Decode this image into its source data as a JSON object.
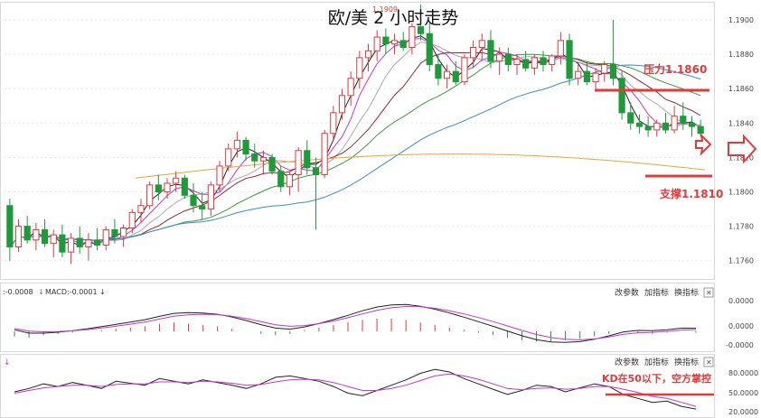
{
  "title": "欧/美 2 小时走势",
  "peak_label": "1.1909",
  "price_axis": {
    "ticks": [
      "1.1900",
      "1.1880",
      "1.1860",
      "1.1840",
      "1.1820",
      "1.1800",
      "1.1780",
      "1.1760"
    ],
    "tick_values": [
      1.19,
      1.188,
      1.186,
      1.184,
      1.182,
      1.18,
      1.178,
      1.176
    ]
  },
  "annotations": {
    "resistance": "压力1.1860",
    "support": "支撑1.1810",
    "kd_note": "KD在50以下，空方掌控"
  },
  "macd_panel": {
    "header_left": ":-0.0008",
    "header_mid": "MACD:-0.0001",
    "buttons": [
      "改参数",
      "加指标",
      "换指标"
    ],
    "close": "✕",
    "ticks": [
      "0.0000",
      "0.0000",
      "-0.0000"
    ]
  },
  "kd_panel": {
    "header_left": "↓",
    "buttons": [
      "改参数",
      "加指标",
      "换指标"
    ],
    "close": "✕",
    "ticks": [
      "80.0000",
      "50.0000",
      "20.0000"
    ]
  },
  "colors": {
    "up": "#e0393e",
    "down": "#1f9a3a",
    "annotation": "#e23a3a",
    "ma_black": "#222222",
    "ma_magenta": "#cc33cc",
    "ma_brown": "#8b2a3a",
    "ma_gray": "#aaaaaa",
    "ma_green": "#3c9a3c",
    "ma_blue": "#3a8ad6",
    "ma_orange": "#e8a53a"
  },
  "chart_data": {
    "type": "candlestick",
    "title": "欧/美 2 小时走势",
    "ylim": [
      1.1745,
      1.1915
    ],
    "resistance_level": 1.186,
    "support_level": 1.181,
    "candles": [
      [
        1.1792,
        1.1796,
        1.176,
        1.1768
      ],
      [
        1.1768,
        1.1784,
        1.1765,
        1.178
      ],
      [
        1.178,
        1.1786,
        1.177,
        1.1772
      ],
      [
        1.1772,
        1.1782,
        1.1766,
        1.1778
      ],
      [
        1.1778,
        1.1784,
        1.1768,
        1.177
      ],
      [
        1.177,
        1.1778,
        1.1762,
        1.1775
      ],
      [
        1.1775,
        1.1781,
        1.1762,
        1.1765
      ],
      [
        1.1765,
        1.1776,
        1.1758,
        1.1773
      ],
      [
        1.1773,
        1.178,
        1.1764,
        1.1768
      ],
      [
        1.1768,
        1.1776,
        1.176,
        1.1772
      ],
      [
        1.1772,
        1.1779,
        1.1766,
        1.1769
      ],
      [
        1.1769,
        1.178,
        1.1766,
        1.1778
      ],
      [
        1.1778,
        1.1784,
        1.177,
        1.1774
      ],
      [
        1.1774,
        1.1781,
        1.1768,
        1.1779
      ],
      [
        1.1779,
        1.179,
        1.1776,
        1.1788
      ],
      [
        1.1788,
        1.1796,
        1.1782,
        1.1792
      ],
      [
        1.1792,
        1.1806,
        1.179,
        1.1804
      ],
      [
        1.1804,
        1.181,
        1.1795,
        1.18
      ],
      [
        1.18,
        1.1808,
        1.1796,
        1.1805
      ],
      [
        1.1805,
        1.1812,
        1.18,
        1.1808
      ],
      [
        1.1808,
        1.181,
        1.1796,
        1.1798
      ],
      [
        1.1798,
        1.1805,
        1.1788,
        1.1792
      ],
      [
        1.1792,
        1.18,
        1.1784,
        1.179
      ],
      [
        1.179,
        1.1806,
        1.1786,
        1.1804
      ],
      [
        1.1804,
        1.1818,
        1.18,
        1.1815
      ],
      [
        1.1815,
        1.1828,
        1.1812,
        1.1825
      ],
      [
        1.1825,
        1.1835,
        1.182,
        1.183
      ],
      [
        1.183,
        1.1832,
        1.1818,
        1.1822
      ],
      [
        1.1822,
        1.1828,
        1.1814,
        1.1818
      ],
      [
        1.1818,
        1.1824,
        1.181,
        1.182
      ],
      [
        1.182,
        1.1822,
        1.181,
        1.1812
      ],
      [
        1.1812,
        1.1815,
        1.18,
        1.1803
      ],
      [
        1.1803,
        1.1812,
        1.1798,
        1.181
      ],
      [
        1.181,
        1.1826,
        1.18,
        1.1824
      ],
      [
        1.1824,
        1.183,
        1.181,
        1.1814
      ],
      [
        1.1814,
        1.182,
        1.1778,
        1.181
      ],
      [
        1.181,
        1.1836,
        1.1808,
        1.1834
      ],
      [
        1.1834,
        1.185,
        1.183,
        1.1846
      ],
      [
        1.1846,
        1.186,
        1.1842,
        1.1856
      ],
      [
        1.1856,
        1.187,
        1.185,
        1.1866
      ],
      [
        1.1866,
        1.1882,
        1.186,
        1.1878
      ],
      [
        1.1878,
        1.1886,
        1.187,
        1.1882
      ],
      [
        1.1882,
        1.1894,
        1.1876,
        1.189
      ],
      [
        1.189,
        1.1895,
        1.188,
        1.1886
      ],
      [
        1.1886,
        1.1892,
        1.188,
        1.1888
      ],
      [
        1.1888,
        1.1893,
        1.1882,
        1.1884
      ],
      [
        1.1884,
        1.1898,
        1.188,
        1.1896
      ],
      [
        1.1896,
        1.1909,
        1.1888,
        1.1892
      ],
      [
        1.1892,
        1.1898,
        1.187,
        1.1874
      ],
      [
        1.1874,
        1.188,
        1.1862,
        1.1866
      ],
      [
        1.1866,
        1.1874,
        1.186,
        1.187
      ],
      [
        1.187,
        1.1876,
        1.1862,
        1.1864
      ],
      [
        1.1864,
        1.188,
        1.1862,
        1.1878
      ],
      [
        1.1878,
        1.1888,
        1.1872,
        1.1884
      ],
      [
        1.1884,
        1.1892,
        1.1876,
        1.1888
      ],
      [
        1.1888,
        1.1894,
        1.1872,
        1.1876
      ],
      [
        1.1876,
        1.1884,
        1.1868,
        1.188
      ],
      [
        1.188,
        1.1884,
        1.187,
        1.1874
      ],
      [
        1.1874,
        1.188,
        1.1868,
        1.1877
      ],
      [
        1.1877,
        1.1882,
        1.187,
        1.1872
      ],
      [
        1.1872,
        1.188,
        1.1868,
        1.1878
      ],
      [
        1.1878,
        1.1882,
        1.187,
        1.1874
      ],
      [
        1.1874,
        1.188,
        1.187,
        1.1879
      ],
      [
        1.1879,
        1.1893,
        1.1874,
        1.1888
      ],
      [
        1.1888,
        1.1892,
        1.1862,
        1.1866
      ],
      [
        1.1866,
        1.1874,
        1.1862,
        1.187
      ],
      [
        1.187,
        1.1876,
        1.1862,
        1.1864
      ],
      [
        1.1864,
        1.1872,
        1.186,
        1.1869
      ],
      [
        1.1869,
        1.1876,
        1.1864,
        1.1874
      ],
      [
        1.1874,
        1.19,
        1.1862,
        1.1866
      ],
      [
        1.1866,
        1.187,
        1.1842,
        1.1846
      ],
      [
        1.1846,
        1.1852,
        1.1836,
        1.184
      ],
      [
        1.184,
        1.1845,
        1.1834,
        1.1838
      ],
      [
        1.1838,
        1.1844,
        1.1832,
        1.1836
      ],
      [
        1.1836,
        1.1842,
        1.1832,
        1.184
      ],
      [
        1.184,
        1.1846,
        1.1834,
        1.1836
      ],
      [
        1.1836,
        1.185,
        1.1834,
        1.1844
      ],
      [
        1.1844,
        1.1852,
        1.1836,
        1.184
      ],
      [
        1.184,
        1.1844,
        1.1832,
        1.1838
      ],
      [
        1.1838,
        1.1842,
        1.1832,
        1.1834
      ]
    ],
    "macd_hist": [
      -0.4,
      -0.5,
      -0.3,
      -0.2,
      -0.1,
      0.0,
      0.1,
      0.2,
      0.3,
      0.4,
      0.6,
      0.7,
      0.6,
      0.5,
      0.4,
      0.2,
      0.0,
      -0.2,
      -0.3,
      -0.2,
      0.1,
      0.3,
      0.5,
      0.7,
      0.9,
      1.0,
      1.0,
      0.9,
      0.7,
      0.5,
      0.3,
      0.1,
      -0.1,
      -0.3,
      -0.5,
      -0.7,
      -0.8,
      -0.8,
      -0.7,
      -0.6,
      -0.4,
      -0.2,
      0.0,
      -0.1,
      -0.2,
      -0.1,
      0.0,
      -0.1
    ],
    "kd_k": [
      50,
      55,
      62,
      58,
      64,
      60,
      55,
      66,
      63,
      60,
      70,
      66,
      62,
      68,
      64,
      60,
      55,
      62,
      72,
      74,
      70,
      66,
      58,
      48,
      44,
      52,
      60,
      68,
      78,
      84,
      80,
      70,
      62,
      54,
      46,
      52,
      60,
      58,
      50,
      56,
      62,
      58,
      46,
      40,
      34,
      36,
      28,
      24
    ],
    "kd_d": [
      48,
      52,
      56,
      58,
      60,
      60,
      58,
      61,
      62,
      62,
      65,
      65,
      64,
      66,
      65,
      63,
      60,
      61,
      65,
      68,
      69,
      68,
      64,
      58,
      52,
      52,
      55,
      60,
      67,
      74,
      77,
      74,
      69,
      62,
      55,
      53,
      55,
      56,
      54,
      55,
      58,
      58,
      54,
      49,
      43,
      40,
      34,
      28
    ]
  }
}
